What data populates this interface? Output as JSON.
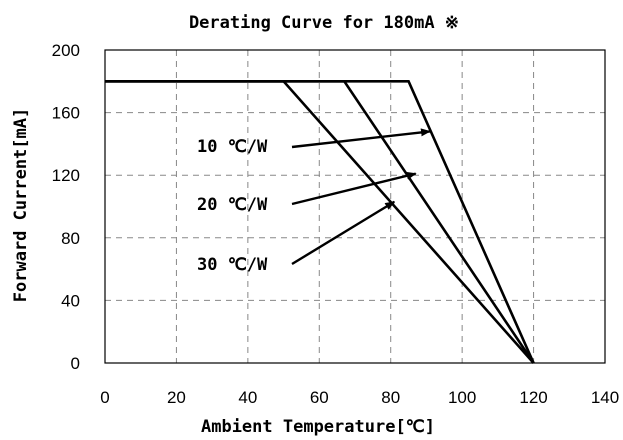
{
  "chart_data": {
    "type": "line",
    "title": "Derating Curve for 180mA ※",
    "xlabel": "Ambient Temperature[℃]",
    "ylabel": "Forward Current[mA]",
    "xlim": [
      0,
      140
    ],
    "ylim": [
      0,
      200
    ],
    "xticks": [
      "0",
      "20",
      "40",
      "60",
      "80",
      "100",
      "120",
      "140"
    ],
    "yticks": [
      "0",
      "40",
      "80",
      "120",
      "160",
      "200"
    ],
    "grid": true,
    "series": [
      {
        "name": "10 ℃/W",
        "x": [
          0,
          85,
          120
        ],
        "y": [
          180,
          180,
          0
        ]
      },
      {
        "name": "20 ℃/W",
        "x": [
          0,
          67,
          120
        ],
        "y": [
          180,
          180,
          0
        ]
      },
      {
        "name": "30 ℃/W",
        "x": [
          0,
          50,
          120
        ],
        "y": [
          180,
          180,
          0
        ]
      }
    ],
    "annotations": [
      {
        "text": "10 ℃/W",
        "points_to": [
          91,
          148
        ]
      },
      {
        "text": "20 ℃/W",
        "points_to": [
          87,
          121
        ]
      },
      {
        "text": "30 ℃/W",
        "points_to": [
          81,
          103
        ]
      }
    ]
  }
}
